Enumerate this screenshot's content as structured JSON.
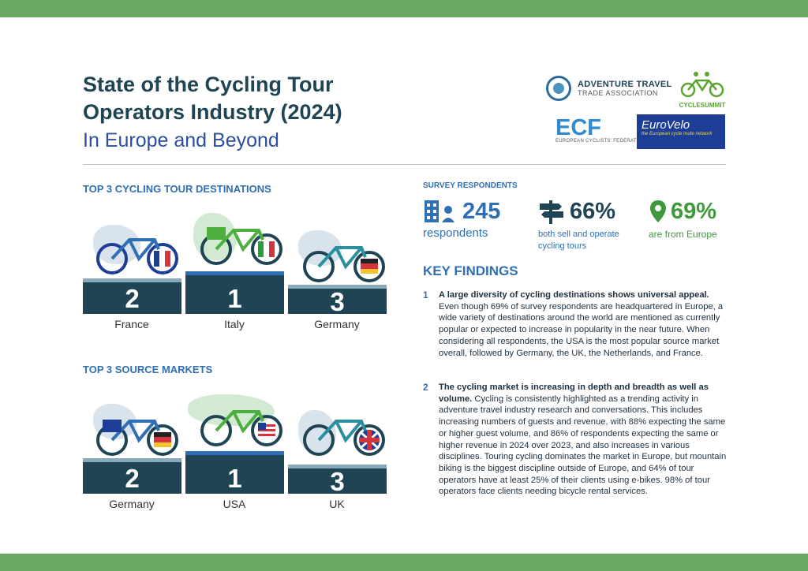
{
  "header": {
    "title_line1": "State of the Cycling Tour",
    "title_line2": "Operators Industry (2024)",
    "subtitle": "In Europe and Beyond"
  },
  "logos": {
    "atta_line1": "ADVENTURE TRAVEL",
    "atta_line2": "TRADE ASSOCIATION",
    "cyclesummit": "CYCLESUMMIT",
    "ecf": "ECF",
    "ecf_full": "EUROPEAN CYCLISTS' FEDERATION",
    "eurovelo": "EuroVelo",
    "eurovelo_tag": "the European cycle route network"
  },
  "destinations": {
    "heading": "TOP 3 CYCLING TOUR DESTINATIONS",
    "podium": [
      {
        "rank": "2",
        "country": "France"
      },
      {
        "rank": "1",
        "country": "Italy"
      },
      {
        "rank": "3",
        "country": "Germany"
      }
    ]
  },
  "markets": {
    "heading": "TOP 3 SOURCE MARKETS",
    "podium": [
      {
        "rank": "2",
        "country": "Germany"
      },
      {
        "rank": "1",
        "country": "USA"
      },
      {
        "rank": "3",
        "country": "UK"
      }
    ]
  },
  "survey": {
    "label": "SURVEY RESPONDENTS",
    "respondents_value": "245",
    "respondents_label": "respondents",
    "sell_operate_value": "66%",
    "sell_operate_label_1": "both sell and operate",
    "sell_operate_label_2": "cycling tours",
    "europe_value": "69%",
    "europe_label": "are from Europe"
  },
  "findings": {
    "heading": "KEY FINDINGS",
    "items": [
      {
        "num": "1",
        "lead": "A large diversity of cycling destinations shows universal appeal.",
        "text": " Even though 69% of survey respondents are headquartered in Europe, a wide variety of destinations around the world are mentioned as currently popular or expected to increase in popularity in the near future. When considering all respondents, the USA is the most popular source market overall, followed by Germany, the UK, the Netherlands, and France."
      },
      {
        "num": "2",
        "lead": "The cycling market is increasing in depth and breadth as well as volume.",
        "text": " Cycling is consistently highlighted as a trending activity in adventure travel industry research and conversations. This includes increasing numbers of guests and revenue, with 88% expecting the same or higher guest volume, and 86% of respondents expecting the same or higher revenue in 2024 over 2023, and also increases in various disciplines. Touring cycling dominates the market in Europe, but mountain biking is the biggest discipline outside of Europe, and 64% of tour operators have at least 25% of their clients using e-bikes. 98% of tour operators face clients needing bicycle rental services."
      }
    ]
  },
  "colors": {
    "band": "#6aa863",
    "navy": "#1f4453",
    "blue": "#2f6fb5",
    "green": "#3e9a3a"
  }
}
